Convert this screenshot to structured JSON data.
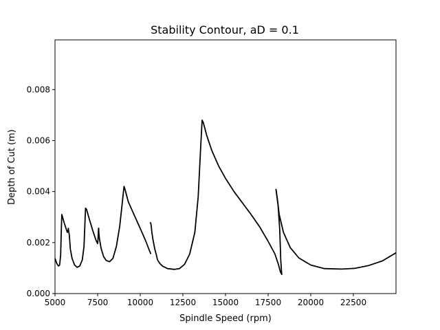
{
  "chart_data": {
    "type": "line",
    "title": "Stability Contour, aD = 0.1",
    "xlabel": "Spindle Speed (rpm)",
    "ylabel": "Depth of Cut (m)",
    "xlim": [
      5000,
      25000
    ],
    "ylim": [
      0,
      0.00995
    ],
    "grid": false,
    "x_ticks": [
      5000,
      7500,
      10000,
      12500,
      15000,
      17500,
      20000,
      22500
    ],
    "x_tick_labels": [
      "5000",
      "7500",
      "10000",
      "12500",
      "15000",
      "17500",
      "20000",
      "22500"
    ],
    "y_ticks": [
      0,
      0.002,
      0.004,
      0.006,
      0.008
    ],
    "y_tick_labels": [
      "0.000",
      "0.002",
      "0.004",
      "0.006",
      "0.008"
    ],
    "line_color": "#000000",
    "series": [
      {
        "lobes": [
          [
            [
              5000,
              0.00138
            ],
            [
              5100,
              0.00118
            ],
            [
              5200,
              0.00108
            ],
            [
              5270,
              0.00112
            ],
            [
              5330,
              0.0015
            ],
            [
              5370,
              0.0025
            ],
            [
              5400,
              0.0031
            ],
            [
              5450,
              0.00298
            ],
            [
              5550,
              0.00275
            ],
            [
              5650,
              0.00255
            ],
            [
              5720,
              0.0024
            ],
            [
              5760,
              0.00248
            ],
            [
              5800,
              0.00255
            ]
          ],
          [
            [
              5780,
              0.00258
            ],
            [
              5800,
              0.00245
            ],
            [
              5840,
              0.0023
            ],
            [
              5900,
              0.00175
            ],
            [
              6000,
              0.00138
            ],
            [
              6150,
              0.00112
            ],
            [
              6300,
              0.00103
            ],
            [
              6450,
              0.00108
            ],
            [
              6600,
              0.00132
            ],
            [
              6700,
              0.00185
            ],
            [
              6760,
              0.0028
            ],
            [
              6790,
              0.00335
            ],
            [
              6850,
              0.0033
            ],
            [
              7000,
              0.00295
            ],
            [
              7200,
              0.0025
            ],
            [
              7400,
              0.0021
            ],
            [
              7500,
              0.00196
            ],
            [
              7520,
              0.0021
            ],
            [
              7550,
              0.0025
            ],
            [
              7560,
              0.00258
            ]
          ],
          [
            [
              7560,
              0.00258
            ],
            [
              7570,
              0.0024
            ],
            [
              7600,
              0.00218
            ],
            [
              7700,
              0.00178
            ],
            [
              7850,
              0.00145
            ],
            [
              8000,
              0.0013
            ],
            [
              8200,
              0.00125
            ],
            [
              8400,
              0.00138
            ],
            [
              8600,
              0.00185
            ],
            [
              8800,
              0.00265
            ],
            [
              8950,
              0.0036
            ],
            [
              9050,
              0.0042
            ],
            [
              9100,
              0.0041
            ],
            [
              9300,
              0.0036
            ],
            [
              9600,
              0.00315
            ],
            [
              10000,
              0.00255
            ],
            [
              10300,
              0.0021
            ],
            [
              10500,
              0.00175
            ],
            [
              10620,
              0.00155
            ]
          ],
          [
            [
              10580,
              0.0028
            ],
            [
              10620,
              0.00275
            ],
            [
              10650,
              0.00262
            ],
            [
              10680,
              0.0024
            ],
            [
              10750,
              0.0021
            ],
            [
              10850,
              0.00175
            ],
            [
              10950,
              0.0015
            ],
            [
              11000,
              0.00135
            ],
            [
              11050,
              0.00128
            ],
            [
              11150,
              0.00118
            ],
            [
              11300,
              0.00108
            ],
            [
              11600,
              0.00098
            ],
            [
              12000,
              0.00095
            ],
            [
              12300,
              0.00098
            ],
            [
              12600,
              0.00115
            ],
            [
              12900,
              0.00155
            ],
            [
              13200,
              0.0024
            ],
            [
              13400,
              0.0038
            ],
            [
              13550,
              0.0058
            ],
            [
              13630,
              0.0068
            ],
            [
              13700,
              0.0067
            ],
            [
              13900,
              0.0062
            ],
            [
              14200,
              0.0056
            ],
            [
              14600,
              0.005
            ],
            [
              15000,
              0.00452
            ],
            [
              15500,
              0.004
            ],
            [
              16000,
              0.00355
            ],
            [
              16500,
              0.0031
            ],
            [
              17000,
              0.00262
            ],
            [
              17500,
              0.00205
            ],
            [
              17900,
              0.00155
            ],
            [
              18100,
              0.00115
            ],
            [
              18220,
              0.00085
            ],
            [
              18300,
              0.00075
            ],
            [
              18240,
              0.0013
            ],
            [
              18180,
              0.0025
            ],
            [
              18080,
              0.0035
            ],
            [
              17960,
              0.0041
            ]
          ],
          [
            [
              17960,
              0.0041
            ],
            [
              18040,
              0.0037
            ],
            [
              18150,
              0.0031
            ],
            [
              18400,
              0.0024
            ],
            [
              18800,
              0.0018
            ],
            [
              19300,
              0.0014
            ],
            [
              20000,
              0.00112
            ],
            [
              20800,
              0.00098
            ],
            [
              21800,
              0.00096
            ],
            [
              22600,
              0.00099
            ],
            [
              23400,
              0.0011
            ],
            [
              24200,
              0.00128
            ],
            [
              25000,
              0.0016
            ]
          ]
        ]
      }
    ]
  }
}
